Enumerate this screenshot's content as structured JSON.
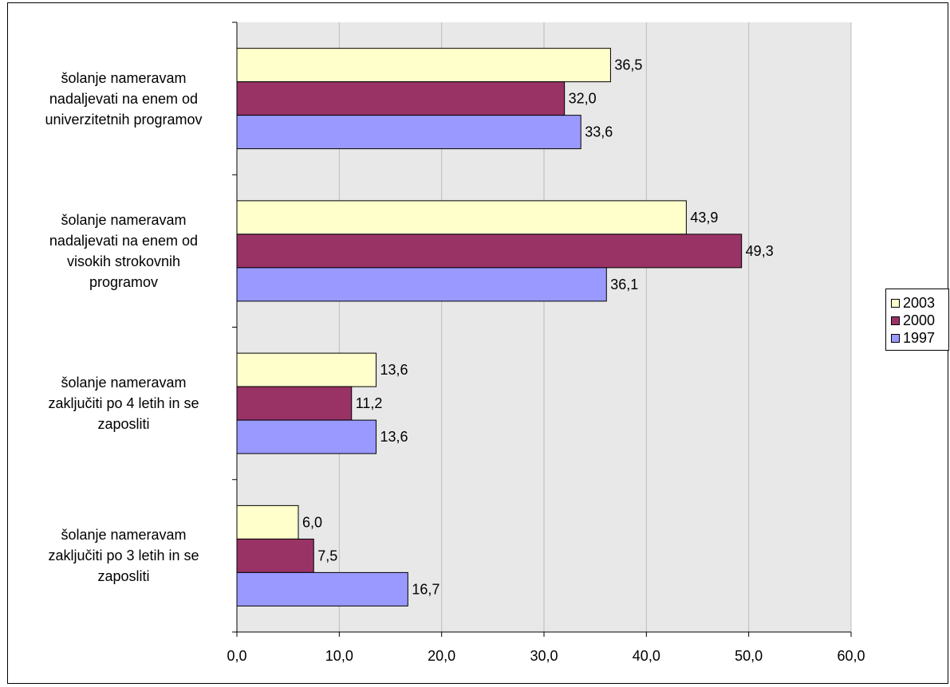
{
  "chart_data": {
    "type": "bar",
    "orientation": "horizontal",
    "categories": [
      "šolanje nameravam nadaljevati na enem od univerzitetnih programov",
      "šolanje nameravam nadaljevati na enem od visokih strokovnih programov",
      "šolanje nameravam zaključiti po 4 letih in se zaposliti",
      "šolanje nameravam zaključiti po 3 letih in se zaposliti"
    ],
    "category_lines": [
      [
        "šolanje nameravam",
        "nadaljevati na enem od",
        "univerzitetnih programov"
      ],
      [
        "šolanje nameravam",
        "nadaljevati na enem od",
        "visokih strokovnih",
        "programov"
      ],
      [
        "šolanje nameravam",
        "zaključiti po 4 letih in se",
        "zaposliti"
      ],
      [
        "šolanje nameravam",
        "zaključiti po 3 letih in se",
        "zaposliti"
      ]
    ],
    "series": [
      {
        "name": "2003",
        "color": "#ffffcc",
        "values": [
          36.5,
          43.9,
          13.6,
          6.0
        ],
        "labels": [
          "36,5",
          "43,9",
          "13,6",
          "6,0"
        ]
      },
      {
        "name": "2000",
        "color": "#993366",
        "values": [
          32.0,
          49.3,
          11.2,
          7.5
        ],
        "labels": [
          "32,0",
          "49,3",
          "11,2",
          "7,5"
        ]
      },
      {
        "name": "1997",
        "color": "#9999ff",
        "values": [
          33.6,
          36.1,
          13.6,
          16.7
        ],
        "labels": [
          "33,6",
          "36,1",
          "13,6",
          "16,7"
        ]
      }
    ],
    "xlim": [
      0,
      60
    ],
    "xticks": [
      0,
      10,
      20,
      30,
      40,
      50,
      60
    ],
    "xtick_labels": [
      "0,0",
      "10,0",
      "20,0",
      "30,0",
      "40,0",
      "50,0",
      "60,0"
    ],
    "grid": true,
    "plot_background": "#e8e8e8",
    "legend_position": "right"
  }
}
